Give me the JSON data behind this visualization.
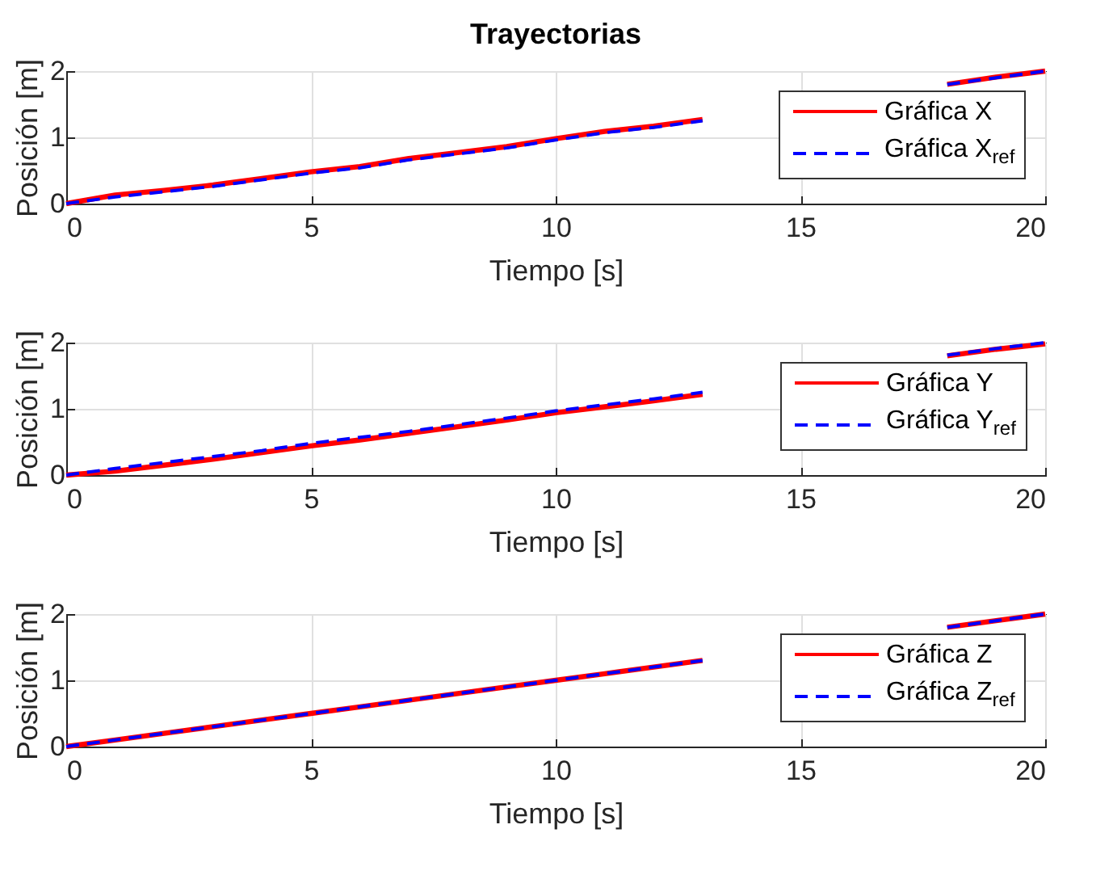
{
  "chart_data": [
    {
      "type": "line",
      "title": "Trayectorias",
      "xlabel": "Tiempo [s]",
      "ylabel": "Posición [m]",
      "x": [
        0,
        1,
        2,
        3,
        4,
        5,
        6,
        7,
        8,
        9,
        10,
        11,
        12,
        13,
        14,
        15,
        16,
        17,
        18,
        19,
        20
      ],
      "xlim": [
        0,
        20
      ],
      "xticks": [
        0,
        5,
        10,
        15,
        20
      ],
      "ylim": [
        0,
        2
      ],
      "yticks": [
        0,
        1,
        2
      ],
      "grid": true,
      "legend": "top right",
      "series": [
        {
          "name": "Gráfica X",
          "color": "#ff0000",
          "line_style": "solid",
          "values": [
            0,
            0.13,
            0.2,
            0.28,
            0.38,
            0.48,
            0.56,
            0.68,
            0.77,
            0.86,
            0.98,
            1.09,
            1.17,
            1.27,
            null,
            null,
            null,
            null,
            1.8,
            1.91,
            2.0
          ]
        },
        {
          "name": "Gráfica X$_{ref}$",
          "color": "#0000ff",
          "line_style": "dashed",
          "values": [
            0,
            0.1,
            0.18,
            0.26,
            0.36,
            0.46,
            0.54,
            0.66,
            0.75,
            0.84,
            0.96,
            1.07,
            1.15,
            1.25,
            null,
            null,
            null,
            null,
            1.8,
            1.9,
            2.0
          ]
        }
      ]
    },
    {
      "type": "line",
      "xlabel": "Tiempo [s]",
      "ylabel": "Posición [m]",
      "x": [
        0,
        1,
        2,
        3,
        4,
        5,
        6,
        7,
        8,
        9,
        10,
        11,
        12,
        13,
        14,
        15,
        16,
        17,
        18,
        19,
        20
      ],
      "xlim": [
        0,
        20
      ],
      "xticks": [
        0,
        5,
        10,
        15,
        20
      ],
      "ylim": [
        0,
        2
      ],
      "yticks": [
        0,
        1,
        2
      ],
      "grid": true,
      "legend": "top right",
      "series": [
        {
          "name": "Gráfica Y",
          "color": "#ff0000",
          "line_style": "solid",
          "values": [
            0,
            0.06,
            0.15,
            0.24,
            0.34,
            0.44,
            0.53,
            0.63,
            0.73,
            0.83,
            0.94,
            1.03,
            1.12,
            1.22,
            null,
            null,
            null,
            null,
            1.8,
            1.9,
            1.98
          ]
        },
        {
          "name": "Gráfica Y$_{ref}$",
          "color": "#0000ff",
          "line_style": "dashed",
          "values": [
            0,
            0.1,
            0.19,
            0.28,
            0.37,
            0.48,
            0.57,
            0.66,
            0.76,
            0.86,
            0.97,
            1.06,
            1.15,
            1.25,
            null,
            null,
            null,
            null,
            1.81,
            1.91,
            2.0
          ]
        }
      ]
    },
    {
      "type": "line",
      "xlabel": "Tiempo [s]",
      "ylabel": "Posición [m]",
      "x": [
        0,
        1,
        2,
        3,
        4,
        5,
        6,
        7,
        8,
        9,
        10,
        11,
        12,
        13,
        14,
        15,
        16,
        17,
        18,
        19,
        20
      ],
      "xlim": [
        0,
        20
      ],
      "xticks": [
        0,
        5,
        10,
        15,
        20
      ],
      "ylim": [
        0,
        2
      ],
      "yticks": [
        0,
        1,
        2
      ],
      "grid": true,
      "legend": "top right",
      "series": [
        {
          "name": "Gráfica Z",
          "color": "#ff0000",
          "line_style": "solid",
          "values": [
            0,
            0.1,
            0.2,
            0.3,
            0.4,
            0.5,
            0.6,
            0.7,
            0.8,
            0.9,
            1.0,
            1.1,
            1.2,
            1.3,
            null,
            null,
            null,
            null,
            1.8,
            1.9,
            2.0
          ]
        },
        {
          "name": "Gráfica Z$_{ref}$",
          "color": "#0000ff",
          "line_style": "dashed",
          "values": [
            0,
            0.1,
            0.2,
            0.3,
            0.4,
            0.5,
            0.6,
            0.7,
            0.8,
            0.9,
            1.0,
            1.1,
            1.2,
            1.3,
            null,
            null,
            null,
            null,
            1.8,
            1.9,
            2.0
          ]
        }
      ]
    }
  ]
}
